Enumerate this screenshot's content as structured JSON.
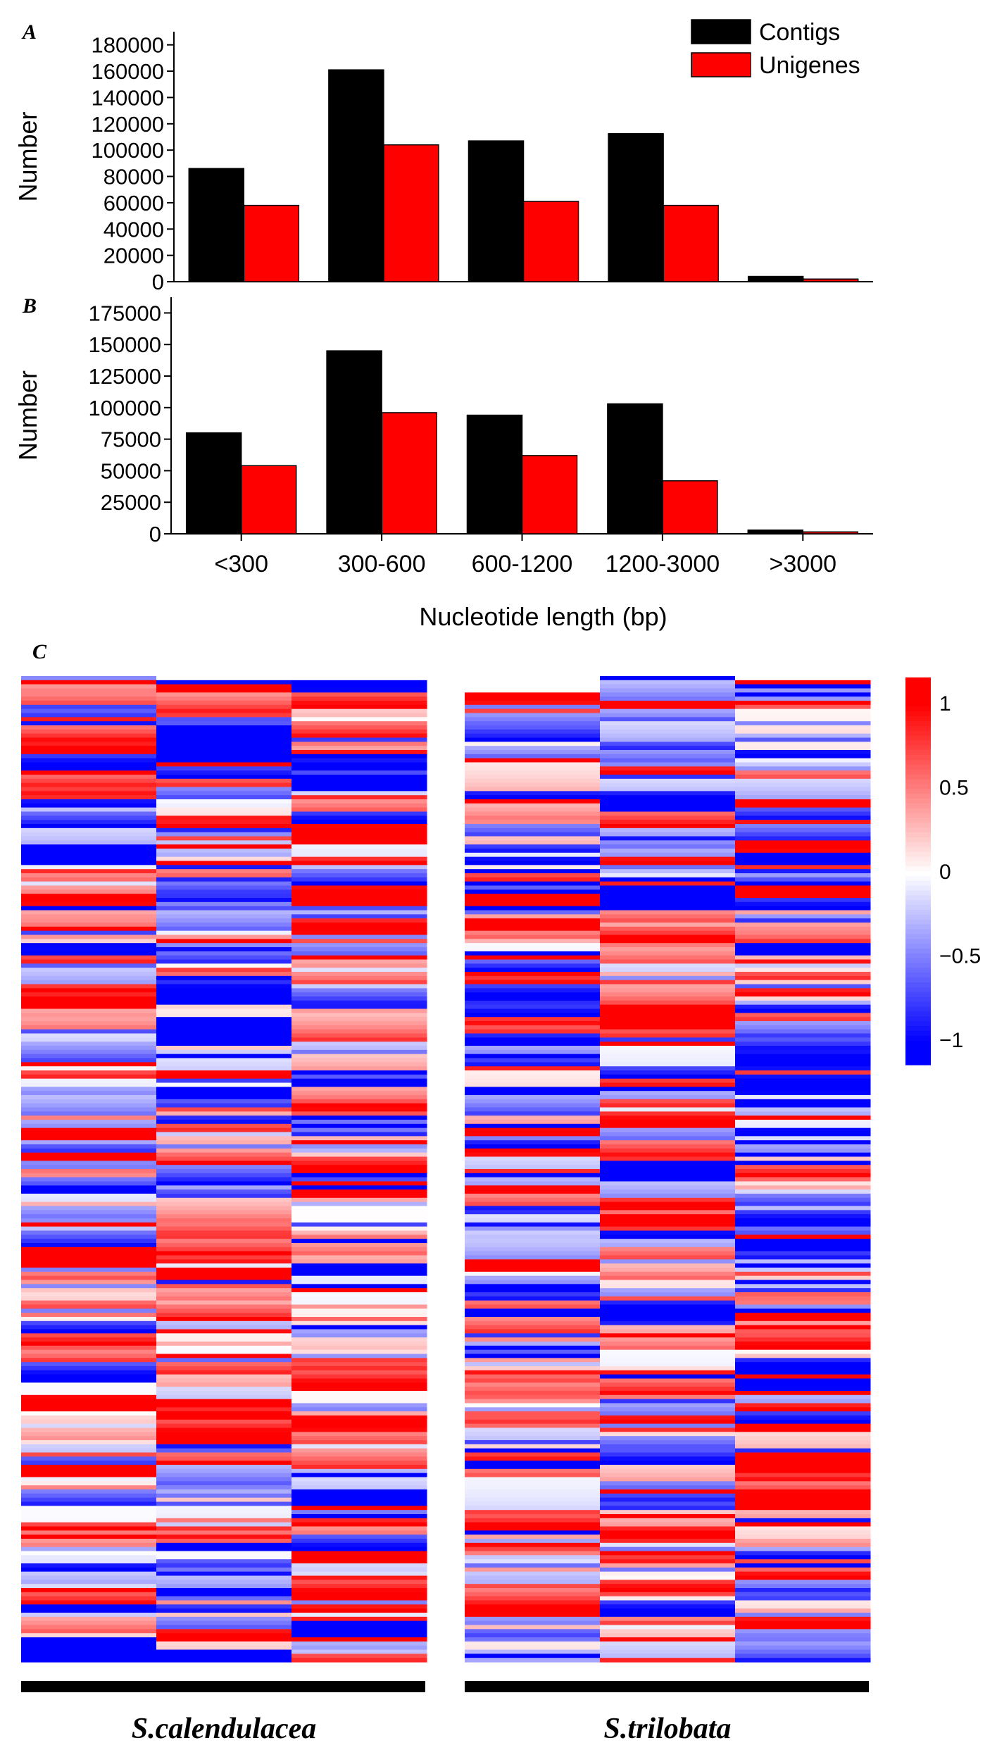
{
  "chart_data": [
    {
      "panel": "A",
      "type": "bar",
      "ylabel": "Number",
      "xlabel": "",
      "categories": [
        "<300",
        "300-600",
        "600-1200",
        "1200-3000",
        ">3000"
      ],
      "ylim": [
        0,
        190000
      ],
      "yticks": [
        0,
        20000,
        40000,
        60000,
        80000,
        100000,
        120000,
        140000,
        160000,
        180000
      ],
      "series": [
        {
          "name": "Contigs",
          "color": "#000000",
          "values": [
            86000,
            161000,
            107000,
            112500,
            4000
          ]
        },
        {
          "name": "Unigenes",
          "color": "#ff0000",
          "values": [
            58000,
            104000,
            61000,
            58000,
            2000
          ]
        }
      ],
      "legend": "top-right"
    },
    {
      "panel": "B",
      "type": "bar",
      "ylabel": "Number",
      "xlabel": "Nucleotide length (bp)",
      "categories": [
        "<300",
        "300-600",
        "600-1200",
        "1200-3000",
        ">3000"
      ],
      "ylim": [
        0,
        187500
      ],
      "yticks": [
        0,
        25000,
        50000,
        75000,
        100000,
        125000,
        150000,
        175000
      ],
      "series": [
        {
          "name": "Contigs",
          "color": "#000000",
          "values": [
            80000,
            145000,
            94000,
            103000,
            3000
          ]
        },
        {
          "name": "Unigenes",
          "color": "#ff0000",
          "values": [
            54000,
            96000,
            62000,
            42000,
            1500
          ]
        }
      ]
    },
    {
      "panel": "C",
      "type": "heatmap",
      "groups": [
        {
          "label": "S.calendulacea",
          "columns": 3
        },
        {
          "label": "S.trilobata",
          "columns": 3
        }
      ],
      "rows": 240,
      "colorbar": {
        "min": -1.15,
        "max": 1.15,
        "ticks": [
          1,
          0.5,
          0,
          -0.5,
          -1
        ],
        "tick_labels": [
          "1",
          "0.5",
          "0",
          "−0.5",
          "−1"
        ],
        "low_color": "#0000ff",
        "mid_color": "#ffffff",
        "high_color": "#ff0000"
      }
    }
  ],
  "panels": {
    "a": "A",
    "b": "B",
    "c": "C"
  }
}
